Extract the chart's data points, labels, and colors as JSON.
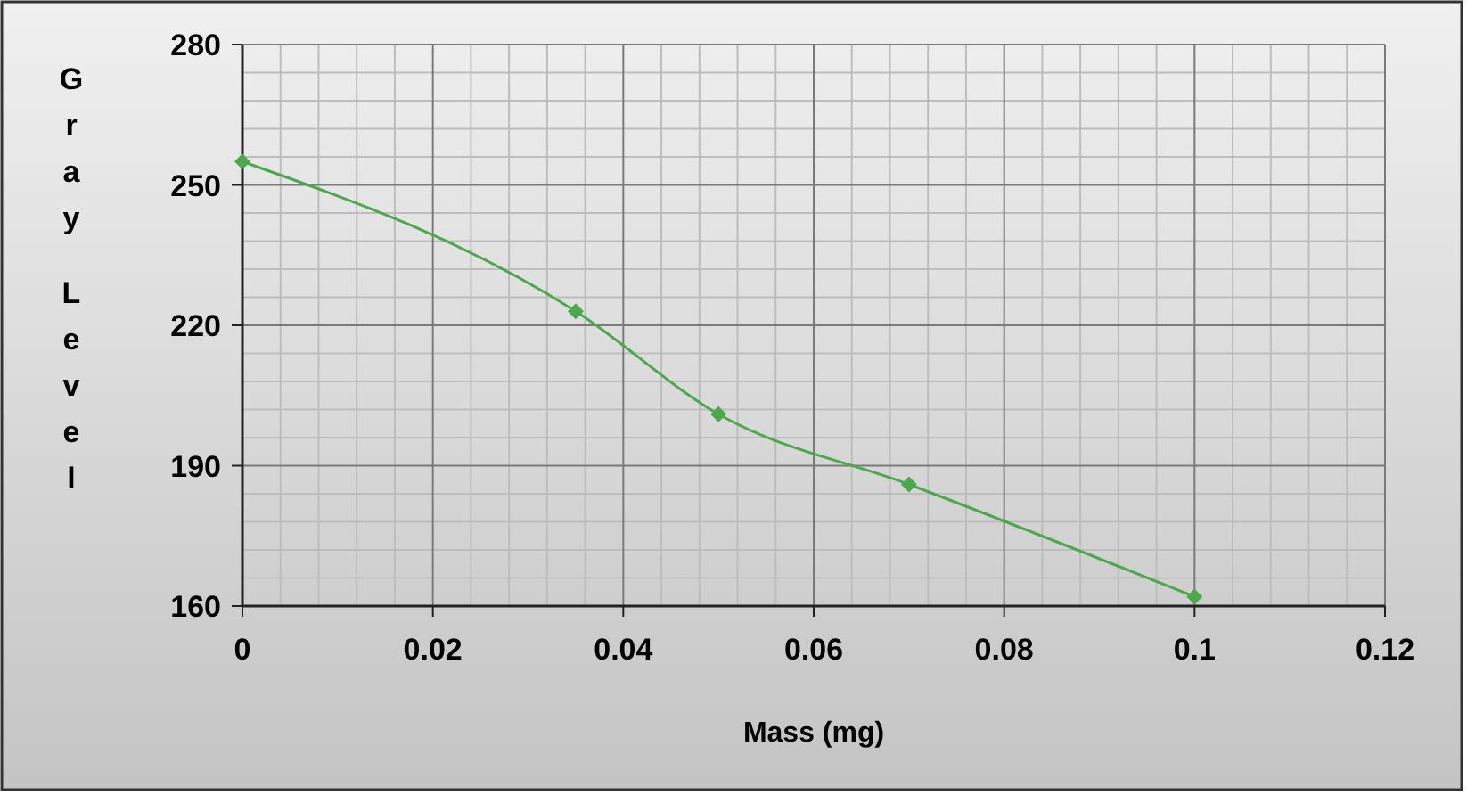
{
  "chart_data": {
    "type": "line",
    "xlabel": "Mass (mg)",
    "ylabel": "Gray Level",
    "x": [
      0,
      0.035,
      0.05,
      0.07,
      0.1
    ],
    "series": [
      {
        "color": "#4aaa4a",
        "values": [
          255,
          223,
          201,
          186,
          162
        ]
      }
    ],
    "xlim": [
      0,
      0.12
    ],
    "xticks": [
      0,
      0.02,
      0.04,
      0.06,
      0.08,
      0.1,
      0.12
    ],
    "ylim": [
      160,
      280
    ],
    "yticks": [
      160,
      190,
      220,
      250,
      280
    ],
    "grid": true,
    "marker": "diamond",
    "line_style": "solid"
  }
}
